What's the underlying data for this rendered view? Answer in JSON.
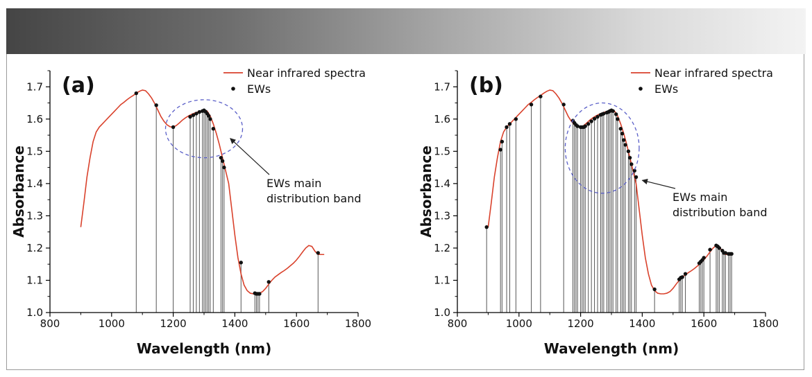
{
  "chart_data": [
    {
      "panel": "(a)",
      "type": "line",
      "title": "",
      "xlabel": "Wavelength (nm)",
      "ylabel": "Absorbance",
      "xlim": [
        800,
        1800
      ],
      "ylim": [
        1.0,
        1.75
      ],
      "xticks": [
        800,
        1000,
        1200,
        1400,
        1600,
        1800
      ],
      "yticks": [
        1.0,
        1.1,
        1.2,
        1.3,
        1.4,
        1.5,
        1.6,
        1.7
      ],
      "legend": {
        "position": "top-right",
        "line_label": "Near infrared spectra",
        "points_label": "EWs"
      },
      "annotation": {
        "line1": "EWs main",
        "line2": "distribution band",
        "ellipse_center": [
          1300,
          1.57
        ],
        "ellipse_radii": [
          125,
          0.09
        ],
        "arrow_target": [
          1385,
          1.54
        ]
      },
      "series": [
        {
          "name": "Near infrared spectra",
          "color": "#d9412b",
          "x": [
            900,
            910,
            920,
            930,
            940,
            950,
            960,
            970,
            980,
            990,
            1000,
            1010,
            1020,
            1030,
            1040,
            1050,
            1060,
            1070,
            1080,
            1090,
            1100,
            1110,
            1120,
            1130,
            1140,
            1150,
            1160,
            1170,
            1180,
            1190,
            1200,
            1210,
            1220,
            1230,
            1240,
            1250,
            1260,
            1270,
            1280,
            1290,
            1300,
            1310,
            1320,
            1330,
            1340,
            1350,
            1360,
            1370,
            1380,
            1390,
            1400,
            1410,
            1420,
            1430,
            1440,
            1450,
            1460,
            1470,
            1480,
            1490,
            1500,
            1510,
            1520,
            1530,
            1540,
            1550,
            1560,
            1570,
            1580,
            1590,
            1600,
            1610,
            1620,
            1630,
            1640,
            1650,
            1660,
            1670,
            1680,
            1690
          ],
          "y": [
            1.265,
            1.34,
            1.42,
            1.48,
            1.53,
            1.56,
            1.575,
            1.585,
            1.595,
            1.605,
            1.615,
            1.625,
            1.635,
            1.645,
            1.652,
            1.66,
            1.667,
            1.673,
            1.68,
            1.686,
            1.69,
            1.688,
            1.678,
            1.665,
            1.648,
            1.628,
            1.608,
            1.593,
            1.582,
            1.576,
            1.575,
            1.58,
            1.588,
            1.597,
            1.604,
            1.61,
            1.615,
            1.619,
            1.622,
            1.625,
            1.627,
            1.625,
            1.61,
            1.585,
            1.555,
            1.52,
            1.48,
            1.44,
            1.4,
            1.32,
            1.24,
            1.17,
            1.12,
            1.085,
            1.068,
            1.06,
            1.058,
            1.058,
            1.06,
            1.065,
            1.075,
            1.088,
            1.1,
            1.11,
            1.117,
            1.124,
            1.13,
            1.137,
            1.145,
            1.153,
            1.163,
            1.175,
            1.188,
            1.2,
            1.208,
            1.205,
            1.19,
            1.18,
            1.18,
            1.18
          ]
        },
        {
          "name": "EWs",
          "color": "#111111",
          "x": [
            1080,
            1145,
            1200,
            1255,
            1265,
            1275,
            1285,
            1295,
            1300,
            1305,
            1310,
            1315,
            1320,
            1330,
            1355,
            1360,
            1365,
            1420,
            1465,
            1470,
            1475,
            1480,
            1510,
            1670
          ],
          "y": [
            1.68,
            1.643,
            1.575,
            1.607,
            1.612,
            1.617,
            1.622,
            1.625,
            1.627,
            1.623,
            1.617,
            1.61,
            1.6,
            1.57,
            1.48,
            1.47,
            1.45,
            1.155,
            1.06,
            1.058,
            1.058,
            1.058,
            1.095,
            1.185
          ]
        }
      ]
    },
    {
      "panel": "(b)",
      "type": "line",
      "title": "",
      "xlabel": "Wavelength (nm)",
      "ylabel": "Absorbance",
      "xlim": [
        800,
        1800
      ],
      "ylim": [
        1.0,
        1.75
      ],
      "xticks": [
        800,
        1000,
        1200,
        1400,
        1600,
        1800
      ],
      "yticks": [
        1.0,
        1.1,
        1.2,
        1.3,
        1.4,
        1.5,
        1.6,
        1.7
      ],
      "legend": {
        "position": "top-right",
        "line_label": "Near infrared spectra",
        "points_label": "EWs"
      },
      "annotation": {
        "line1": "EWs main",
        "line2": "distribution band",
        "ellipse_center": [
          1270,
          1.51
        ],
        "ellipse_radii": [
          120,
          0.14
        ],
        "arrow_target": [
          1400,
          1.41
        ]
      },
      "series": [
        {
          "name": "Near infrared spectra",
          "color": "#d9412b",
          "x": [
            900,
            910,
            920,
            930,
            940,
            950,
            960,
            970,
            980,
            990,
            1000,
            1010,
            1020,
            1030,
            1040,
            1050,
            1060,
            1070,
            1080,
            1090,
            1100,
            1110,
            1120,
            1130,
            1140,
            1150,
            1160,
            1170,
            1180,
            1190,
            1200,
            1210,
            1220,
            1230,
            1240,
            1250,
            1260,
            1270,
            1280,
            1290,
            1300,
            1310,
            1320,
            1330,
            1340,
            1350,
            1360,
            1370,
            1380,
            1390,
            1400,
            1410,
            1420,
            1430,
            1440,
            1450,
            1460,
            1470,
            1480,
            1490,
            1500,
            1510,
            1520,
            1530,
            1540,
            1550,
            1560,
            1570,
            1580,
            1590,
            1600,
            1610,
            1620,
            1630,
            1640,
            1650,
            1660,
            1670,
            1680,
            1690
          ],
          "y": [
            1.265,
            1.34,
            1.42,
            1.48,
            1.53,
            1.56,
            1.575,
            1.585,
            1.595,
            1.605,
            1.615,
            1.625,
            1.635,
            1.645,
            1.652,
            1.66,
            1.667,
            1.673,
            1.68,
            1.686,
            1.69,
            1.688,
            1.678,
            1.665,
            1.648,
            1.628,
            1.608,
            1.593,
            1.582,
            1.576,
            1.575,
            1.58,
            1.588,
            1.597,
            1.604,
            1.61,
            1.615,
            1.619,
            1.622,
            1.625,
            1.627,
            1.625,
            1.61,
            1.585,
            1.555,
            1.52,
            1.48,
            1.44,
            1.4,
            1.32,
            1.24,
            1.17,
            1.12,
            1.085,
            1.068,
            1.06,
            1.058,
            1.058,
            1.06,
            1.065,
            1.075,
            1.088,
            1.1,
            1.11,
            1.117,
            1.124,
            1.13,
            1.137,
            1.145,
            1.153,
            1.163,
            1.175,
            1.188,
            1.2,
            1.208,
            1.205,
            1.19,
            1.18,
            1.18,
            1.18
          ]
        },
        {
          "name": "EWs",
          "color": "#111111",
          "x": [
            895,
            940,
            945,
            960,
            970,
            990,
            1040,
            1070,
            1145,
            1175,
            1180,
            1185,
            1190,
            1200,
            1205,
            1210,
            1215,
            1225,
            1235,
            1245,
            1255,
            1265,
            1270,
            1275,
            1285,
            1290,
            1295,
            1300,
            1305,
            1315,
            1320,
            1330,
            1335,
            1340,
            1345,
            1355,
            1360,
            1365,
            1375,
            1380,
            1440,
            1520,
            1525,
            1530,
            1540,
            1585,
            1590,
            1595,
            1600,
            1620,
            1640,
            1645,
            1650,
            1660,
            1665,
            1670,
            1680,
            1685,
            1690
          ],
          "y": [
            1.265,
            1.505,
            1.53,
            1.575,
            1.585,
            1.6,
            1.645,
            1.67,
            1.645,
            1.595,
            1.588,
            1.582,
            1.578,
            1.575,
            1.575,
            1.575,
            1.578,
            1.585,
            1.593,
            1.601,
            1.607,
            1.613,
            1.615,
            1.617,
            1.62,
            1.622,
            1.625,
            1.627,
            1.625,
            1.615,
            1.6,
            1.57,
            1.555,
            1.535,
            1.52,
            1.5,
            1.48,
            1.46,
            1.44,
            1.42,
            1.072,
            1.103,
            1.108,
            1.11,
            1.12,
            1.153,
            1.158,
            1.163,
            1.17,
            1.195,
            1.208,
            1.205,
            1.2,
            1.192,
            1.185,
            1.185,
            1.182,
            1.182,
            1.182
          ]
        }
      ]
    }
  ]
}
